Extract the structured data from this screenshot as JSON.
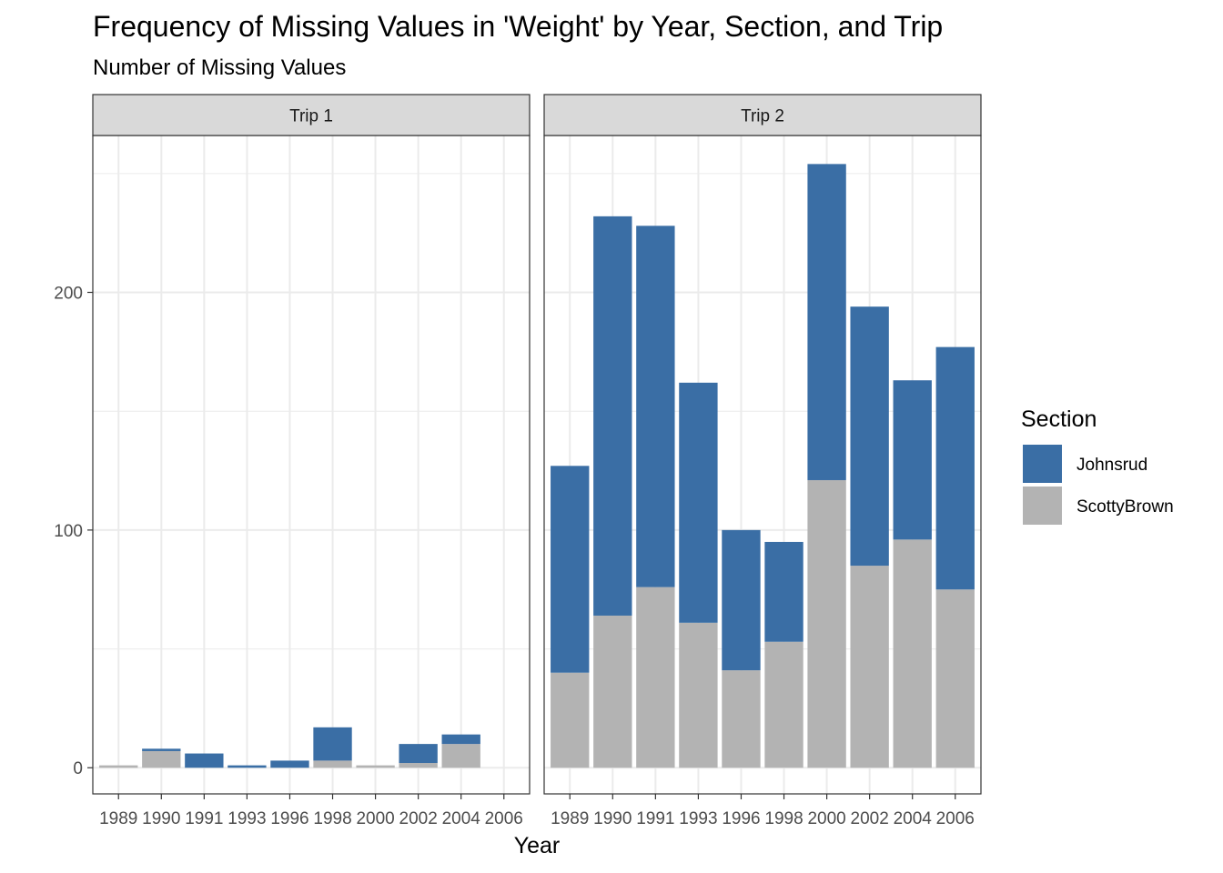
{
  "chart_data": {
    "type": "bar",
    "stacked": true,
    "title": "Frequency of Missing Values in 'Weight' by Year, Section, and Trip",
    "subtitle": "Number of Missing Values",
    "xlabel": "Year",
    "ylabel": "",
    "ylim": [
      -11,
      266
    ],
    "yticks": [
      0,
      100,
      200
    ],
    "grid": true,
    "legend": {
      "title": "Section",
      "placement": "right"
    },
    "colors": {
      "Johnsrud": "#3a6ea5",
      "ScottyBrown": "#b3b3b3"
    },
    "categories": [
      "1989",
      "1990",
      "1991",
      "1993",
      "1996",
      "1998",
      "2000",
      "2002",
      "2004",
      "2006"
    ],
    "panels": [
      {
        "label": "Trip 1",
        "series": [
          {
            "name": "ScottyBrown",
            "values": [
              1,
              7,
              0,
              0,
              0,
              3,
              1,
              2,
              10,
              0
            ]
          },
          {
            "name": "Johnsrud",
            "values": [
              0,
              1,
              6,
              1,
              3,
              14,
              0,
              8,
              4,
              0
            ]
          }
        ]
      },
      {
        "label": "Trip 2",
        "series": [
          {
            "name": "ScottyBrown",
            "values": [
              40,
              64,
              76,
              61,
              41,
              53,
              121,
              85,
              96,
              75
            ]
          },
          {
            "name": "Johnsrud",
            "values": [
              87,
              168,
              152,
              101,
              59,
              42,
              133,
              109,
              67,
              102
            ]
          }
        ]
      }
    ]
  }
}
